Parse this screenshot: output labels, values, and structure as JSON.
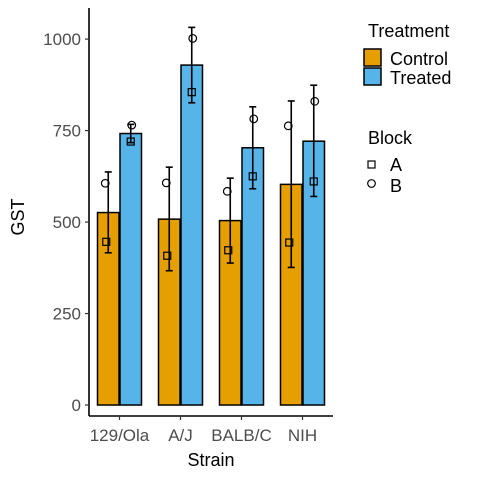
{
  "colors": {
    "control": "#E69F00",
    "treated": "#56B4E9",
    "outline": "#000000",
    "axis": "#000000",
    "tick_text": "#4d4d4d"
  },
  "chart_data": {
    "type": "bar",
    "xlabel": "Strain",
    "ylabel": "GST",
    "categories": [
      "129/Ola",
      "A/J",
      "BALB/C",
      "NIH"
    ],
    "ylim": [
      -30,
      1085
    ],
    "yticks": [
      0,
      250,
      500,
      750,
      1000
    ],
    "grid": false,
    "bar_series": [
      {
        "name": "Control",
        "color": "#E69F00",
        "values": [
          526,
          508,
          504,
          603
        ],
        "error_low": [
          416,
          367,
          388,
          376
        ],
        "error_high": [
          637,
          650,
          620,
          831
        ]
      },
      {
        "name": "Treated",
        "color": "#56B4E9",
        "values": [
          742,
          929,
          703,
          721
        ],
        "error_low": [
          717,
          826,
          591,
          570
        ],
        "error_high": [
          767,
          1032,
          815,
          874
        ]
      }
    ],
    "point_series": [
      {
        "name": "A",
        "shape": "square",
        "values": [
          [
            446,
            720
          ],
          [
            408,
            855
          ],
          [
            423,
            625
          ],
          [
            444,
            611
          ]
        ]
      },
      {
        "name": "B",
        "shape": "circle",
        "values": [
          [
            606,
            765
          ],
          [
            607,
            1002
          ],
          [
            584,
            782
          ],
          [
            763,
            830
          ]
        ]
      }
    ],
    "legend": {
      "position": "right",
      "treatment_title": "Treatment",
      "block_title": "Block"
    }
  }
}
